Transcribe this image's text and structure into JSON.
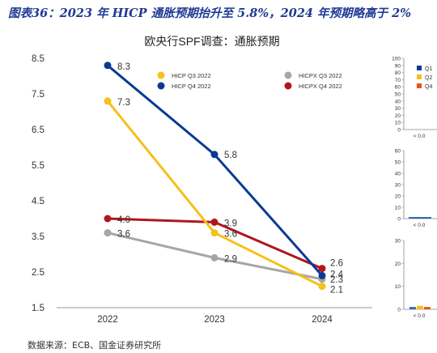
{
  "figure_title": "图表36：2023 年 HICP 通胀预期抬升至 5.8%，2024 年预期略高于 2%",
  "source_note": "数据来源：ECB、国金证券研究所",
  "chart_data": [
    {
      "type": "line",
      "title": "欧央行SPF调查：通胀预期",
      "x": [
        "2022",
        "2023",
        "2024"
      ],
      "ylim": [
        1.5,
        8.5
      ],
      "yticks": [
        "1.5",
        "2.5",
        "3.5",
        "4.5",
        "5.5",
        "6.5",
        "7.5",
        "8.5"
      ],
      "legend_position": "top",
      "series": [
        {
          "name": "HICP Q3 2022",
          "color": "#f5c11a",
          "values": [
            7.3,
            3.6,
            2.1
          ],
          "labels": [
            "7.3",
            "3.6",
            "2.1"
          ]
        },
        {
          "name": "HICP Q4 2022",
          "color": "#0b3a93",
          "values": [
            8.3,
            5.8,
            2.4
          ],
          "labels": [
            "8.3",
            "5.8",
            "2.4"
          ]
        },
        {
          "name": "HICPX Q3 2022",
          "color": "#a6a6a6",
          "values": [
            3.6,
            2.9,
            2.3
          ],
          "labels": [
            "3.6",
            "2.9",
            "2.3"
          ]
        },
        {
          "name": "HICPX Q4 2022",
          "color": "#b0161e",
          "values": [
            4.0,
            3.9,
            2.6
          ],
          "labels": [
            "4.0",
            "3.9",
            "2.6"
          ]
        }
      ]
    },
    {
      "type": "bar",
      "title": "",
      "panels": [
        {
          "yticks": [
            "0",
            "10",
            "20",
            "30",
            "40",
            "50",
            "60",
            "70",
            "80",
            "90",
            "100"
          ],
          "ylim": [
            0,
            100
          ],
          "xtick": "< 0.0",
          "legend": [
            {
              "name": "Q1",
              "color": "#0b3a93"
            },
            {
              "name": "Q2",
              "color": "#f5c11a"
            },
            {
              "name": "Q4",
              "color": "#e8541c"
            }
          ]
        },
        {
          "yticks": [
            "0",
            "10",
            "20",
            "30",
            "40",
            "50",
            "60"
          ],
          "ylim": [
            0,
            60
          ],
          "xtick": "< 0.0"
        },
        {
          "yticks": [
            "0",
            "10",
            "20",
            "30"
          ],
          "ylim": [
            0,
            30
          ],
          "xtick": "< 0.0",
          "series": [
            {
              "name": "Q1",
              "values": [
                1
              ]
            },
            {
              "name": "Q2",
              "values": [
                1.5
              ]
            },
            {
              "name": "Q4",
              "values": [
                1
              ]
            }
          ]
        }
      ]
    }
  ]
}
